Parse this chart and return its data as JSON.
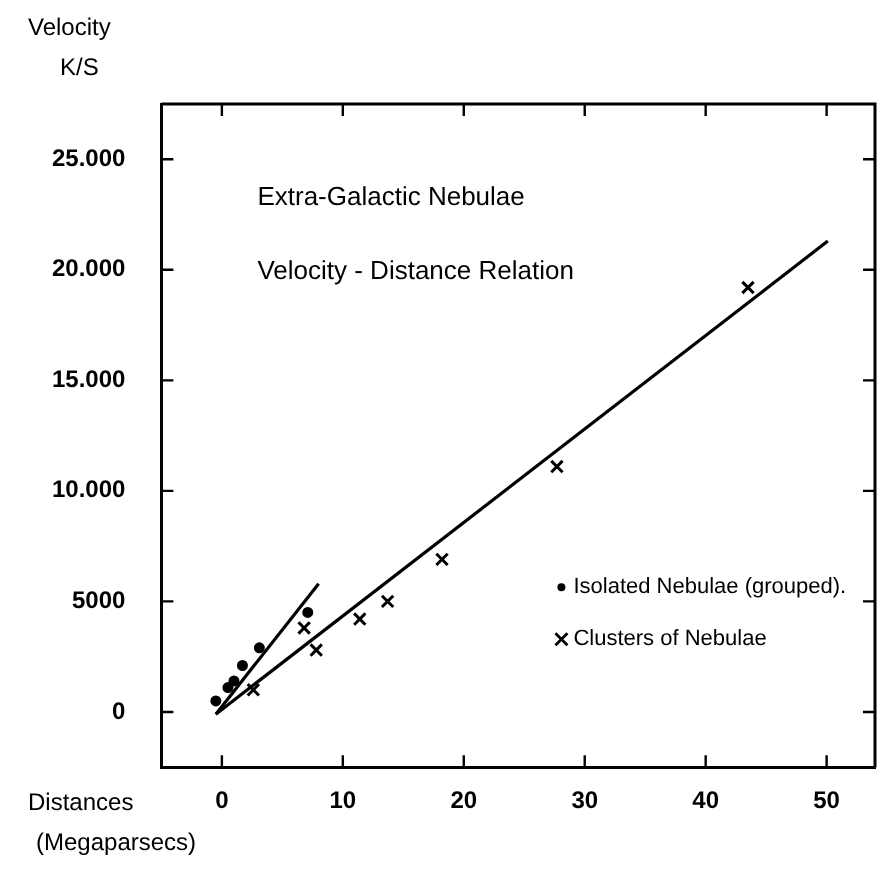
{
  "chart_data": {
    "type": "scatter",
    "title": "Extra-Galactic Nebulae",
    "subtitle": "Velocity - Distance Relation",
    "xlabel": "Distances (Megaparsecs)",
    "ylabel": "Velocity K/S",
    "xlim": [
      -5,
      54
    ],
    "xticks": [
      0,
      10,
      20,
      30,
      40,
      50
    ],
    "ylim": [
      -2500,
      27500
    ],
    "yticks": [
      {
        "value": 0,
        "label": "0"
      },
      {
        "value": 5000,
        "label": "5000"
      },
      {
        "value": 10000,
        "label": "10.000"
      },
      {
        "value": 15000,
        "label": "15.000"
      },
      {
        "value": 20000,
        "label": "20.000"
      },
      {
        "value": 25000,
        "label": "25.000"
      }
    ],
    "grid": false,
    "legend": "bottom right",
    "series": [
      {
        "name": "Isolated Nebulae (grouped).",
        "marker": "circle",
        "color": "#000000",
        "x": [
          -0.5,
          0.5,
          1.0,
          1.7,
          3.1,
          7.1
        ],
        "values": [
          500,
          1100,
          1400,
          2100,
          2900,
          4500
        ]
      },
      {
        "name": "Clusters of Nebulae",
        "marker": "cross",
        "color": "#000000",
        "x": [
          2.6,
          6.8,
          7.8,
          11.4,
          13.7,
          18.2,
          27.7,
          43.5
        ],
        "values": [
          1000,
          3800,
          2800,
          4200,
          5000,
          6900,
          11100,
          19200
        ]
      },
      {
        "type": "line",
        "color": "#000000",
        "x": [
          -0.5,
          8.0
        ],
        "values": [
          -100,
          5800
        ]
      },
      {
        "type": "line",
        "color": "#000000",
        "x": [
          -0.5,
          50.1
        ],
        "values": [
          -100,
          21300
        ]
      }
    ]
  }
}
